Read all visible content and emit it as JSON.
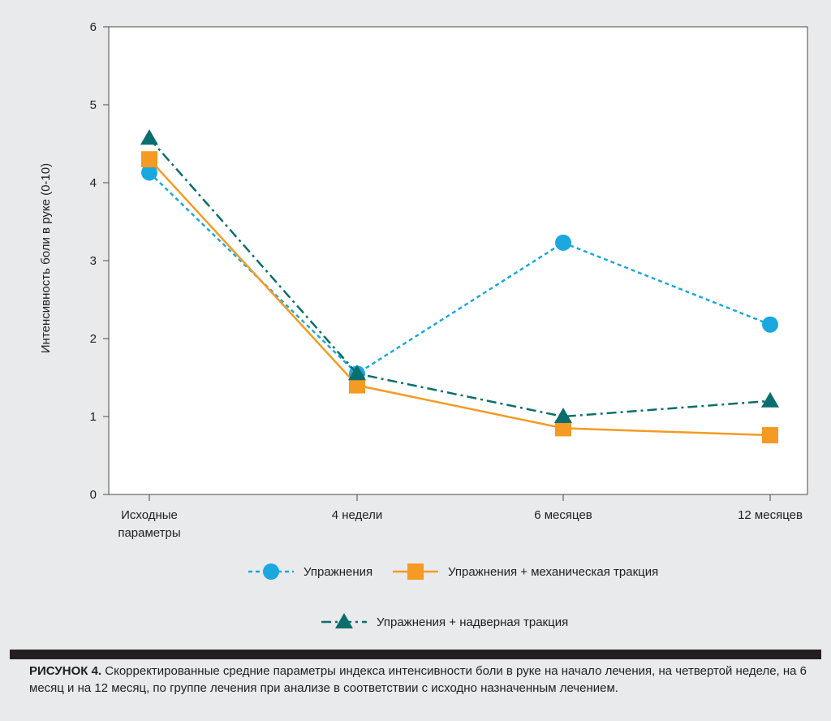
{
  "chart_data": {
    "type": "line",
    "title": "",
    "xlabel": "",
    "ylabel": "Интенсивность боли в руке (0-10)",
    "ylim": [
      0,
      6
    ],
    "yticks": [
      "0",
      "1",
      "2",
      "3",
      "4",
      "5",
      "6"
    ],
    "categories": [
      [
        "Исходные",
        "параметры"
      ],
      [
        "4 недели"
      ],
      [
        "6 месяцев"
      ],
      [
        "12 месяцев"
      ]
    ],
    "grid": false,
    "legend_position": "bottom",
    "series": [
      {
        "name": "Упражнения",
        "values": [
          4.13,
          1.55,
          3.23,
          2.18
        ],
        "color": "#1ba8df",
        "marker": "circle",
        "dash": "dotted"
      },
      {
        "name": "Упражнения + механическая тракция",
        "values": [
          4.3,
          1.4,
          0.85,
          0.76
        ],
        "color": "#f59a23",
        "marker": "square",
        "dash": "solid"
      },
      {
        "name": "Упражнения + надверная тракция",
        "values": [
          4.57,
          1.55,
          1.0,
          1.2
        ],
        "color": "#0b6e6e",
        "marker": "triangle",
        "dash": "dashdot"
      }
    ]
  },
  "caption": {
    "label": "РИСУНОК 4.",
    "text": " Скорректированные средние параметры индекса интенсивности боли в руке на начало лечения, на четвертой неделе, на 6 месяц и на 12 месяц, по группе лечения при анализе в соответствии с исходно назначенным лечением."
  }
}
